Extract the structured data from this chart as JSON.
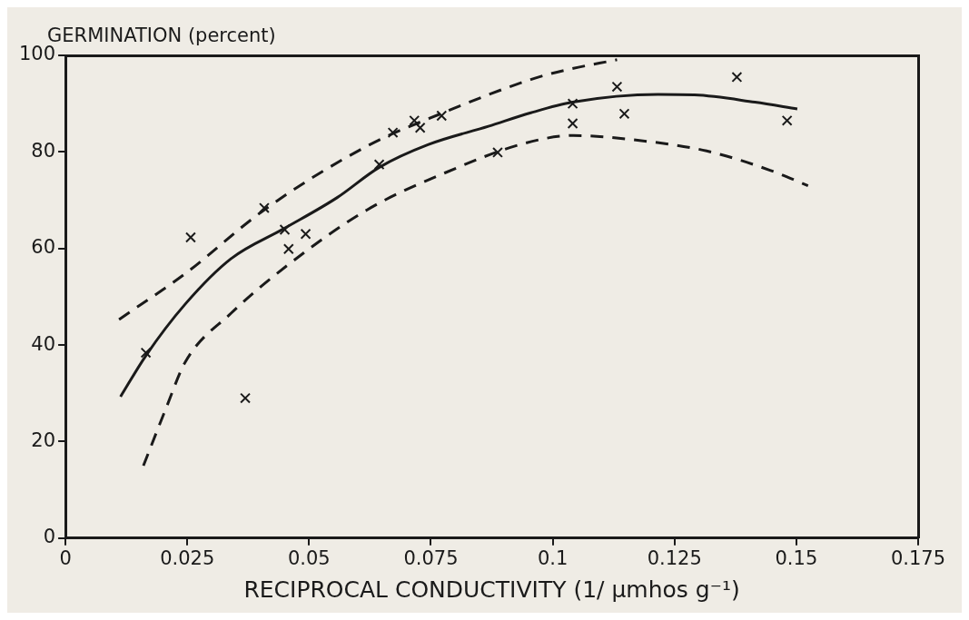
{
  "chart_data": {
    "type": "scatter",
    "xlabel": "RECIPROCAL CONDUCTIVITY (1/ μmhos g⁻¹)",
    "ylabel": "GERMINATION (percent)",
    "xlim": [
      0,
      0.175
    ],
    "xticks": [
      0,
      0.025,
      0.05,
      0.075,
      0.1,
      0.125,
      0.15,
      0.175
    ],
    "ylim": [
      0,
      100
    ],
    "yticks": [
      0,
      20,
      40,
      60,
      80,
      100
    ],
    "grid": false,
    "legend": false,
    "series": [
      {
        "type": "scatter",
        "color": "#1a1a1a",
        "marker": "cross",
        "x": [
          0.0165,
          0.0257,
          0.0408,
          0.0369,
          0.045,
          0.0458,
          0.0493,
          0.0644,
          0.0672,
          0.0716,
          0.0728,
          0.0772,
          0.0887,
          0.1041,
          0.1041,
          0.1132,
          0.1147,
          0.1378,
          0.1481
        ],
        "values": [
          38.4,
          62.3,
          68.4,
          29.0,
          63.9,
          59.9,
          63.0,
          77.4,
          84.0,
          86.5,
          85.0,
          87.5,
          79.9,
          90.0,
          85.9,
          93.5,
          87.9,
          95.5,
          86.5
        ]
      },
      {
        "type": "line",
        "color": "#1a1a1a",
        "line_style": "solid",
        "x": [
          0.0113,
          0.0165,
          0.0246,
          0.034,
          0.045,
          0.0557,
          0.0644,
          0.0744,
          0.0868,
          0.0955,
          0.1041,
          0.1216,
          0.1291,
          0.1415,
          0.1502
        ],
        "values": [
          29.3,
          37.8,
          48.5,
          57.9,
          64.2,
          70.5,
          76.8,
          81.5,
          85.3,
          88.1,
          90.3,
          91.9,
          91.8,
          90.3,
          88.9
        ]
      },
      {
        "type": "line",
        "color": "#1a1a1a",
        "line_style": "dashed",
        "x": [
          0.011,
          0.0246,
          0.0408,
          0.0619,
          0.0775,
          0.0955,
          0.1024,
          0.1132
        ],
        "values": [
          45.3,
          54.8,
          68.0,
          81.2,
          88.1,
          95.0,
          96.9,
          99.1
        ]
      },
      {
        "type": "line",
        "color": "#1a1a1a",
        "line_style": "dashed",
        "x": [
          0.016,
          0.0206,
          0.0246,
          0.034,
          0.0458,
          0.0619,
          0.0775,
          0.0943,
          0.1042,
          0.1167,
          0.1316,
          0.1446,
          0.1524
        ],
        "values": [
          15.0,
          26.8,
          36.5,
          46.6,
          56.7,
          68.0,
          75.5,
          81.8,
          83.4,
          82.5,
          80.2,
          76.2,
          73.0
        ]
      }
    ]
  }
}
